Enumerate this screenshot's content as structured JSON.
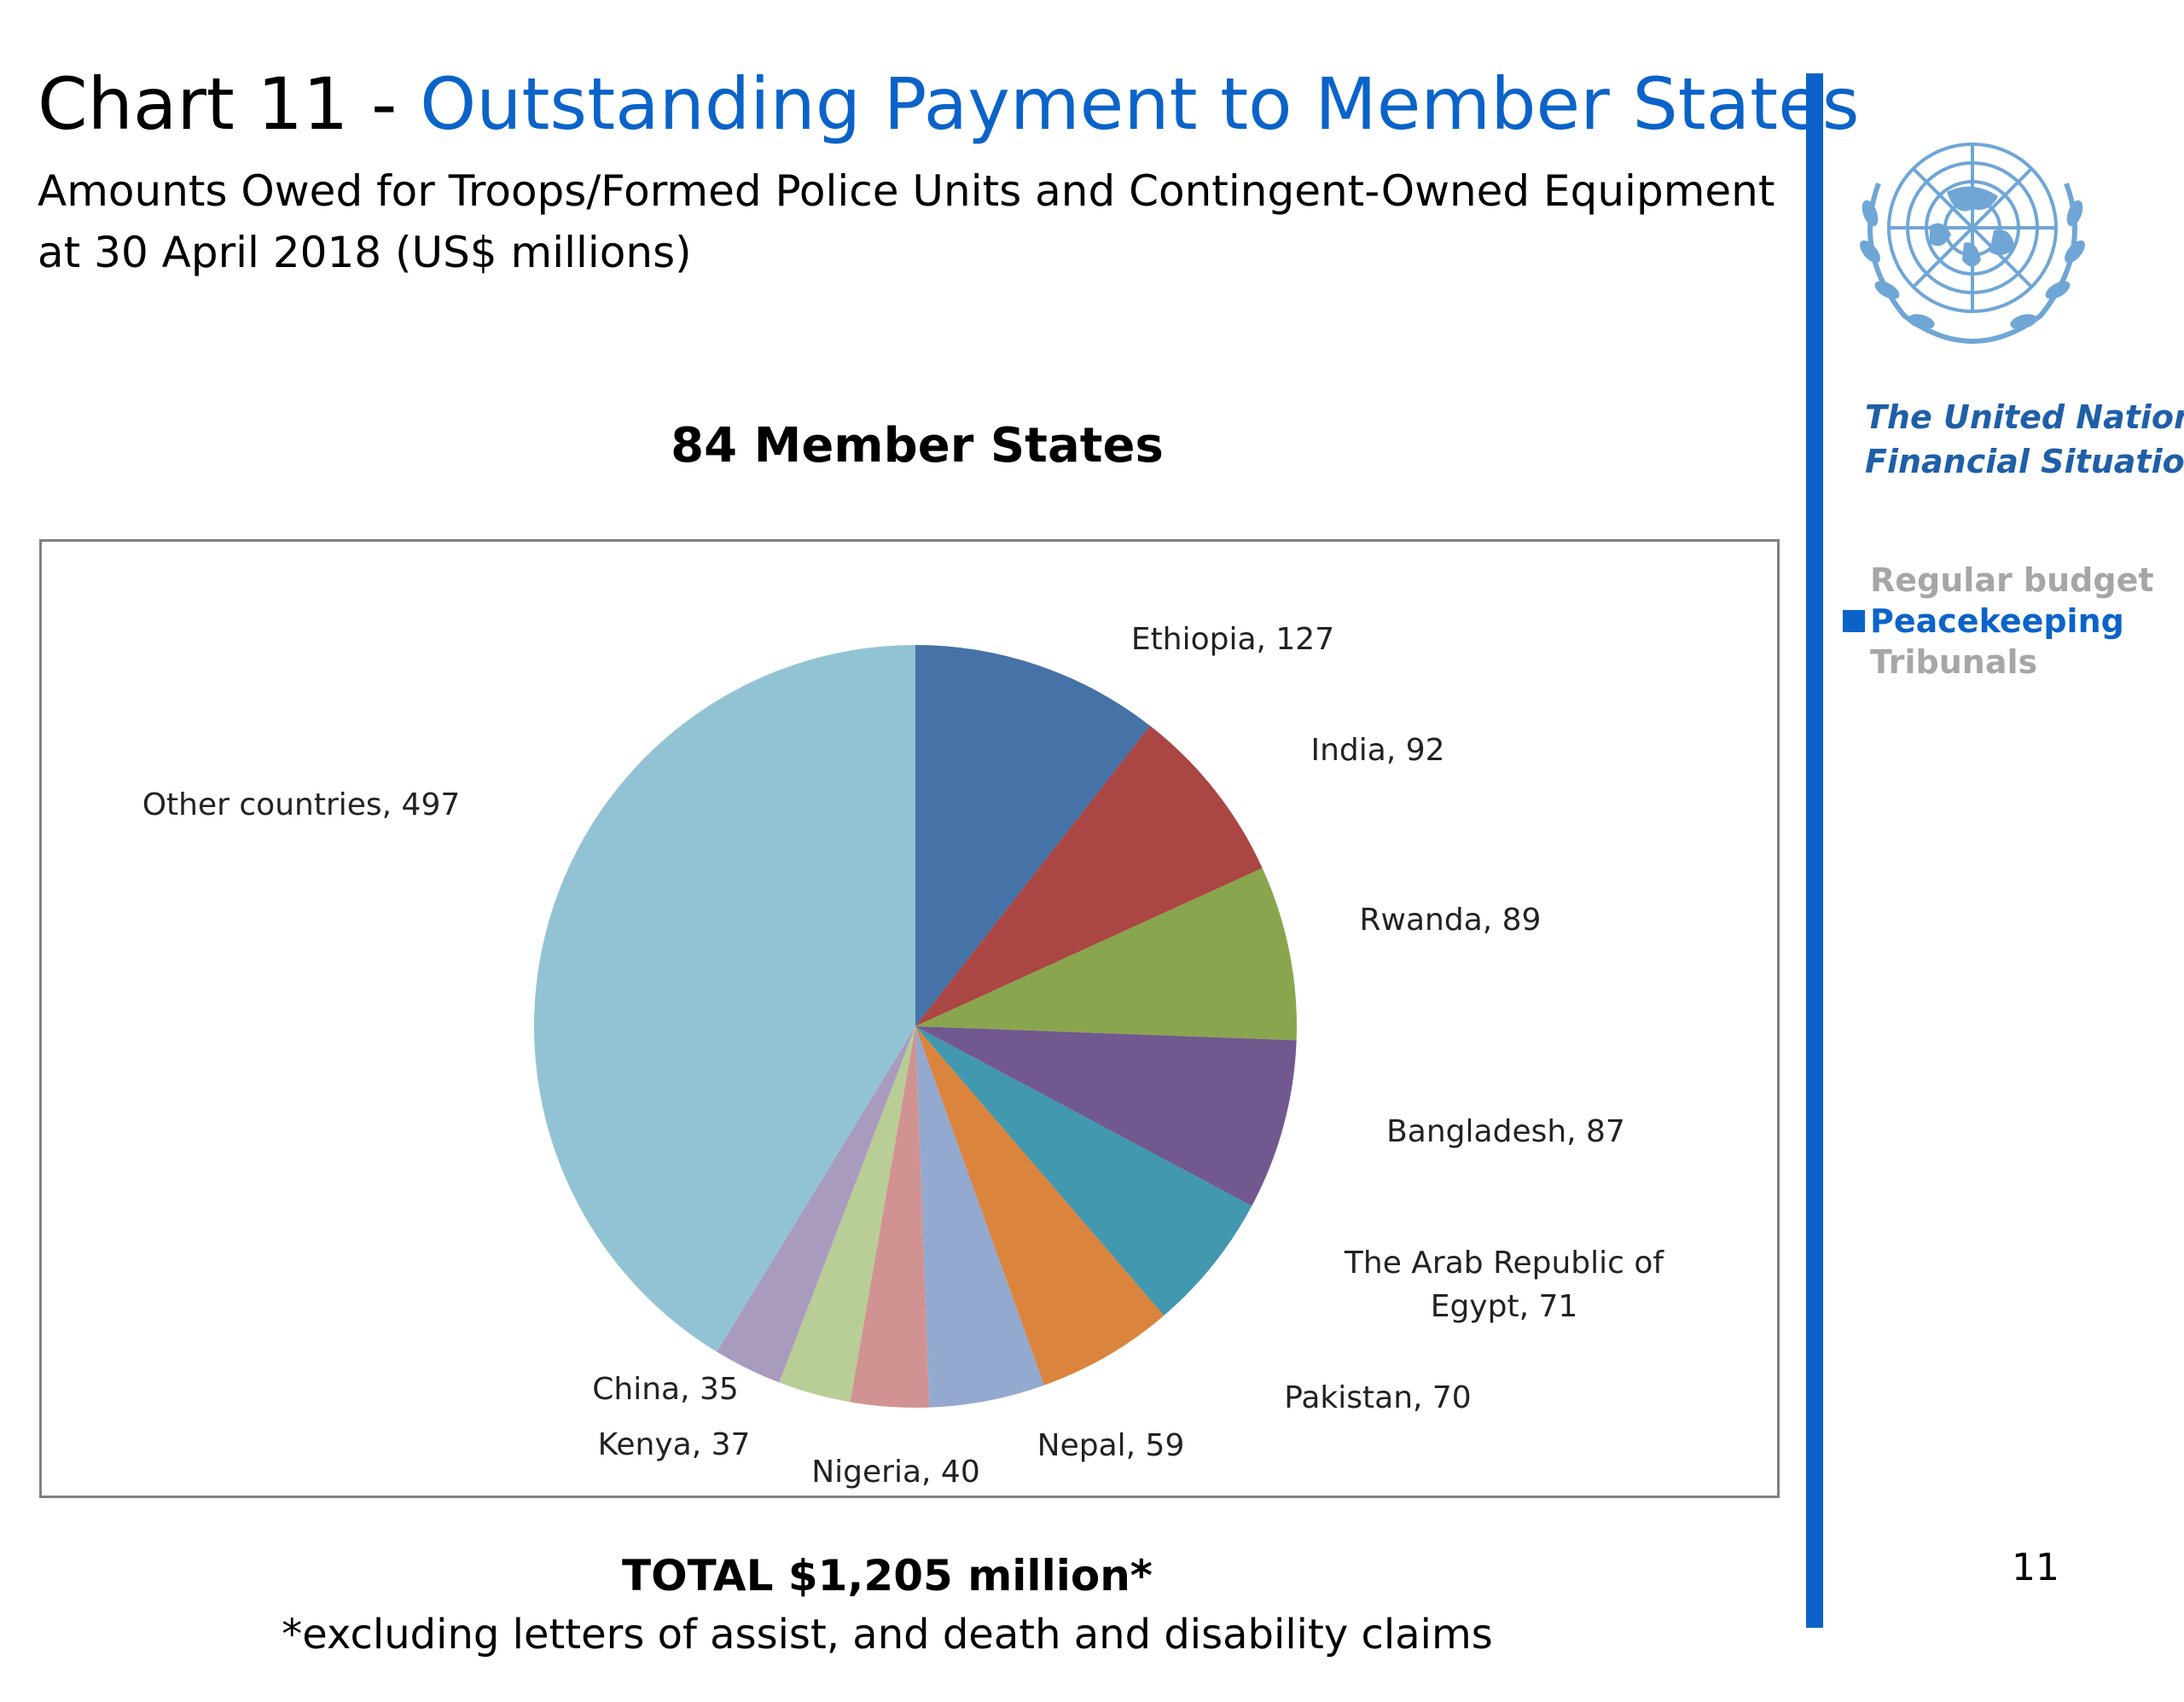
{
  "header": {
    "title_prefix": "Chart 11 - ",
    "title_main": "Outstanding Payment to Member States",
    "subtitle": "Amounts Owed for Troops/Formed Police Units and Contingent-Owned Equipment at 30 April 2018 (US$ millions)"
  },
  "chart_heading": "84 Member States",
  "chart_data": {
    "type": "pie",
    "categories": [
      "Ethiopia",
      "India",
      "Rwanda",
      "Bangladesh",
      "The Arab Republic of Egypt",
      "Pakistan",
      "Nepal",
      "Nigeria",
      "Kenya",
      "China",
      "Other countries"
    ],
    "values": [
      127,
      92,
      89,
      87,
      71,
      70,
      59,
      40,
      37,
      35,
      497
    ],
    "labels": [
      [
        "Ethiopia,  127"
      ],
      [
        "India,  92"
      ],
      [
        "Rwanda,  89"
      ],
      [
        "Bangladesh,  87"
      ],
      [
        "The Arab Republic of",
        "Egypt,  71"
      ],
      [
        "Pakistan,  70"
      ],
      [
        "Nepal,  59"
      ],
      [
        "Nigeria,  40"
      ],
      [
        "Kenya,  37"
      ],
      [
        "China,  35"
      ],
      [
        "Other countries,  497"
      ]
    ],
    "colors": [
      "#4572a7",
      "#aa4643",
      "#89a54e",
      "#71588f",
      "#4198af",
      "#db843d",
      "#93a9cf",
      "#d19392",
      "#b9cd96",
      "#a99bbd",
      "#92c3d4"
    ],
    "start_angle_deg": 0,
    "direction": "clockwise"
  },
  "total": "TOTAL  $1,205 million*",
  "footnote": "*excluding letters of assist, and death and disability claims",
  "sidebar": {
    "org_line1": "The United Nations",
    "org_line2": "Financial Situation",
    "nav": [
      {
        "label": "Regular budget",
        "active": false
      },
      {
        "label": "Peacekeeping",
        "active": true
      },
      {
        "label": "Tribunals",
        "active": false
      }
    ],
    "accent_color": "#0b63c9",
    "logo_icon": "un-emblem-icon"
  },
  "page_number": "11"
}
